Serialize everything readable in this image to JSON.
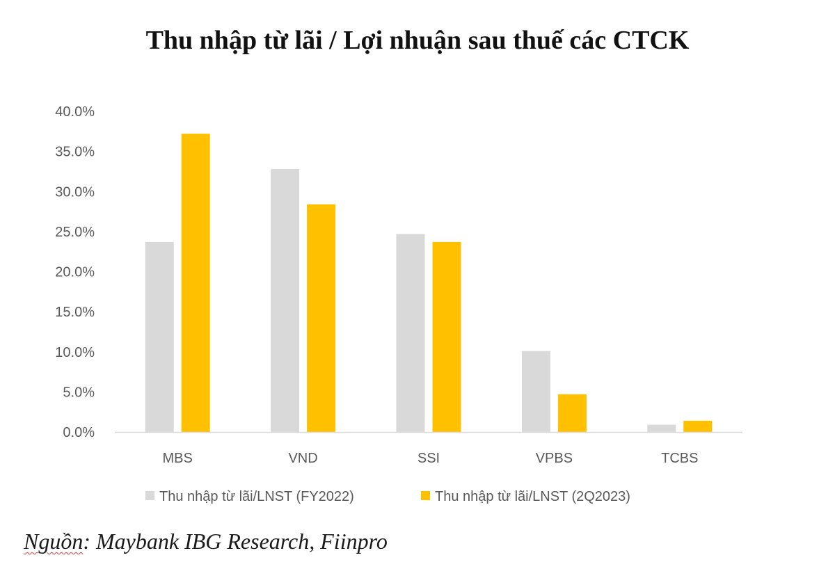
{
  "chart_data": {
    "type": "bar",
    "title": "Thu nhập từ lãi / Lợi nhuận sau thuế các CTCK",
    "categories": [
      "MBS",
      "VND",
      "SSI",
      "VPBS",
      "TCBS"
    ],
    "series": [
      {
        "name": "Thu nhập từ lãi/LNST (FY2022)",
        "color": "#d9d9d9",
        "values": [
          23.7,
          32.8,
          24.7,
          10.1,
          0.9
        ]
      },
      {
        "name": "Thu nhập từ lãi/LNST (2Q2023)",
        "color": "#ffc000",
        "values": [
          37.2,
          28.4,
          23.7,
          4.7,
          1.4
        ]
      }
    ],
    "ylim": [
      0,
      40
    ],
    "yticks": [
      0,
      5,
      10,
      15,
      20,
      25,
      30,
      35,
      40
    ],
    "ytick_format": "percent_1dp",
    "grid": false,
    "legend_position": "bottom",
    "xlabel": "",
    "ylabel": ""
  },
  "source": {
    "prefix": "Nguồn",
    "text": ": Maybank IBG Research, Fiinpro"
  }
}
